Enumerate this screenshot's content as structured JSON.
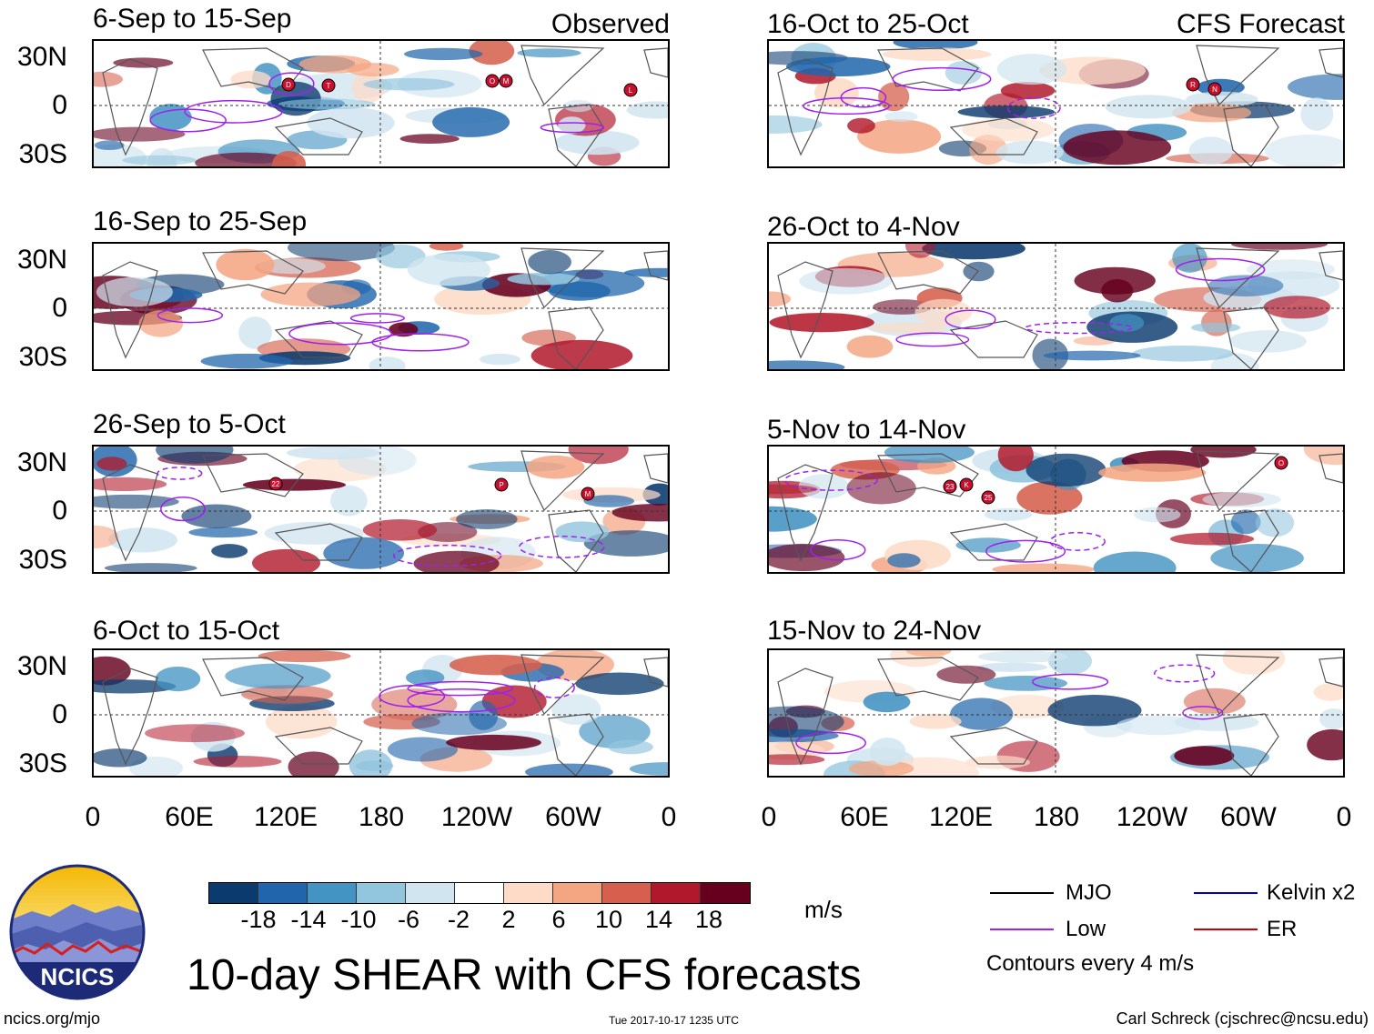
{
  "panels_left": [
    {
      "title": "6-Sep to 15-Sep",
      "tag": "Observed"
    },
    {
      "title": "16-Sep to 25-Sep",
      "tag": ""
    },
    {
      "title": "26-Sep to 5-Oct",
      "tag": ""
    },
    {
      "title": "6-Oct to 15-Oct",
      "tag": ""
    }
  ],
  "panels_right": [
    {
      "title": "16-Oct to 25-Oct",
      "tag": "CFS Forecast"
    },
    {
      "title": "26-Oct to 4-Nov",
      "tag": ""
    },
    {
      "title": "5-Nov to 14-Nov",
      "tag": ""
    },
    {
      "title": "15-Nov to 24-Nov",
      "tag": ""
    }
  ],
  "lat_labels": [
    "30N",
    "0",
    "30S"
  ],
  "lon_labels": [
    "0",
    "60E",
    "120E",
    "180",
    "120W",
    "60W",
    "0"
  ],
  "storms": [
    [
      "D",
      "T",
      "O",
      "M",
      "L"
    ],
    [
      "22",
      "P",
      "M"
    ],
    [
      "R",
      "N"
    ],
    [
      "23",
      "K",
      "25",
      "O"
    ]
  ],
  "colorbar": {
    "colors": [
      "#0b3a6e",
      "#2166ac",
      "#4393c3",
      "#92c5de",
      "#d1e5f0",
      "#ffffff",
      "#fddbc7",
      "#f4a582",
      "#d6604d",
      "#b2182b",
      "#67001f"
    ],
    "ticks": [
      "-18",
      "-14",
      "-10",
      "-6",
      "-2",
      "2",
      "6",
      "10",
      "14",
      "18"
    ],
    "units": "m/s"
  },
  "legend": {
    "mjo": "MJO",
    "low": "Low",
    "kelvin": "Kelvin x2",
    "er": "ER",
    "contours": "Contours every 4 m/s",
    "colors": {
      "mjo": "#000000",
      "low": "#a020f0",
      "kelvin": "#0000cc",
      "er": "#cc0000"
    }
  },
  "main_title": "10-day SHEAR with CFS forecasts",
  "logo_text": "NCICS",
  "footer": {
    "url": "ncics.org/mjo",
    "timestamp": "Tue 2017-10-17 1235 UTC",
    "author": "Carl Schreck (cjschrec@ncsu.edu)"
  }
}
